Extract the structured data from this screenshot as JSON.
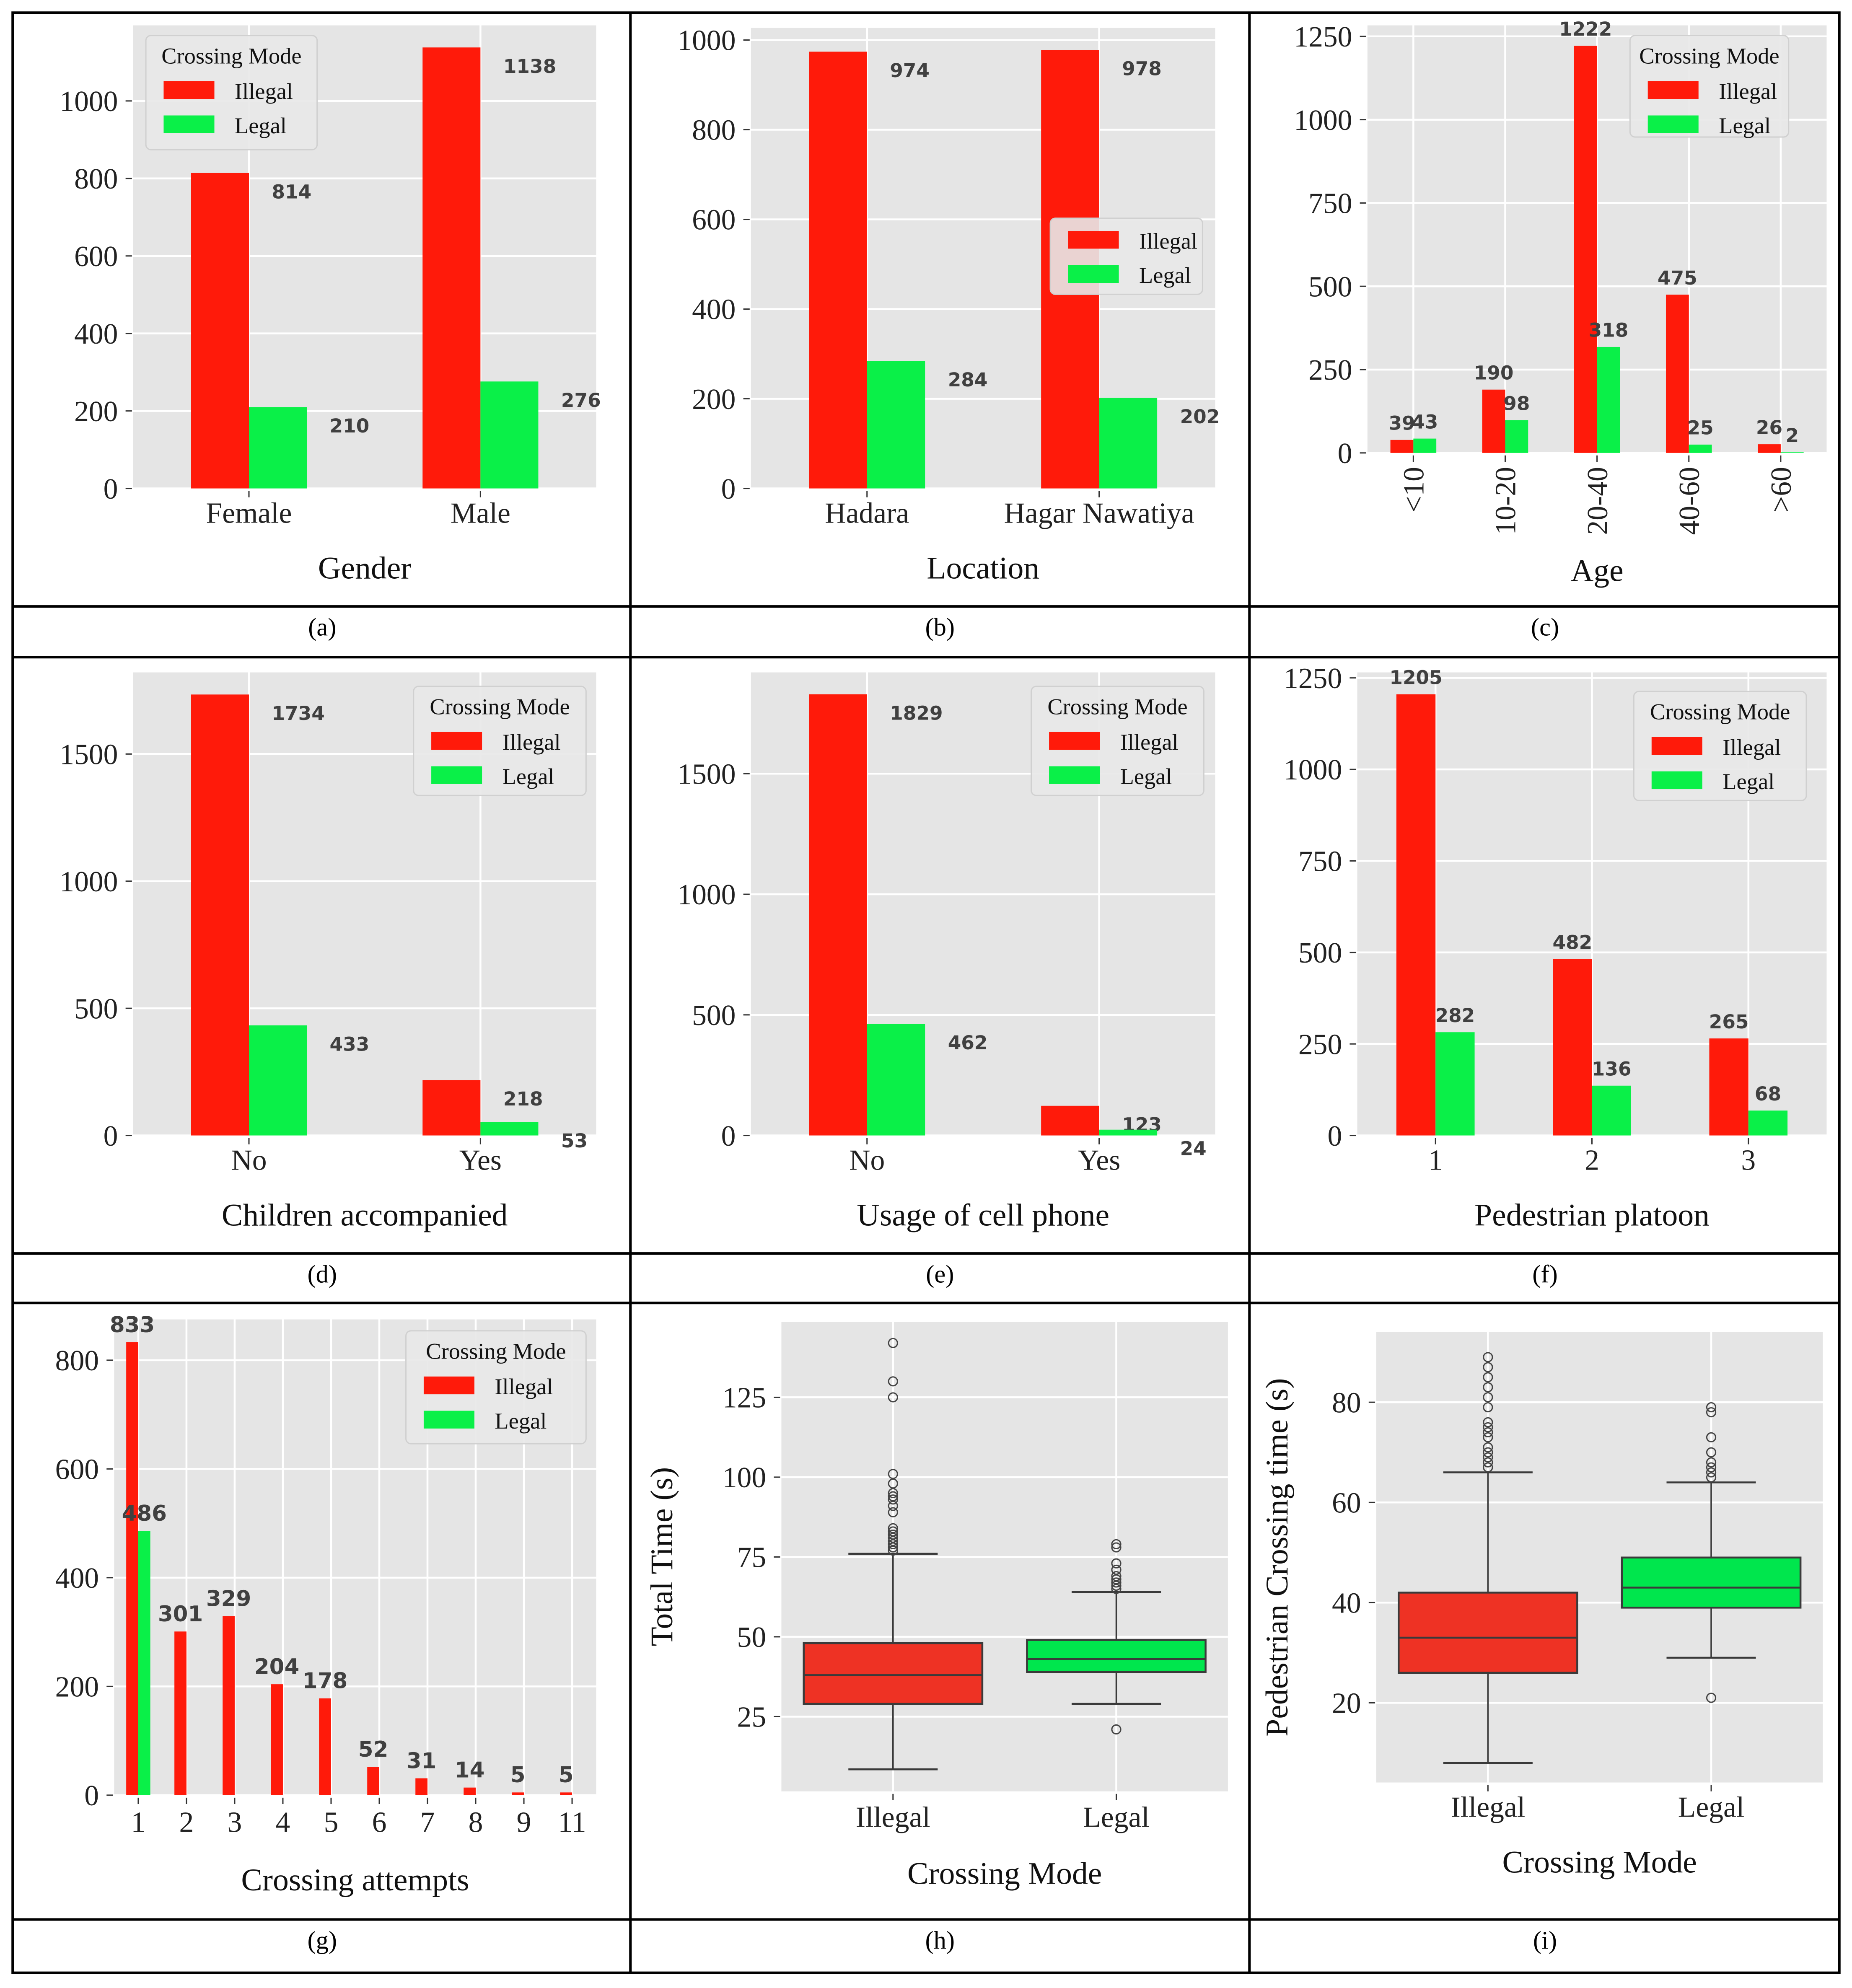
{
  "colors": {
    "illegal": "#ff1a0a",
    "legal": "#0af048",
    "box_illegal": "#ee3224",
    "box_legal": "#00e64d",
    "panel_bg": "#e5e5e5"
  },
  "captions": [
    "(a)",
    "(b)",
    "(c)",
    "(d)",
    "(e)",
    "(f)",
    "(g)",
    "(h)",
    "(i)"
  ],
  "chart_data": [
    {
      "type": "bar",
      "xlabel": "Gender",
      "ylabel": "",
      "categories": [
        "Female",
        "Male"
      ],
      "series": [
        {
          "name": "Illegal",
          "values": [
            814,
            1138
          ]
        },
        {
          "name": "Legal",
          "values": [
            210,
            276
          ]
        }
      ],
      "ylim": [
        0,
        1195
      ],
      "yticks": [
        "0",
        "200",
        "400",
        "600",
        "800",
        "1000"
      ],
      "legend_title": "Crossing Mode",
      "legend": "top-left",
      "grid": true
    },
    {
      "type": "bar",
      "xlabel": "Location",
      "ylabel": "",
      "categories": [
        "Hadara",
        "Hagar Nawatiya"
      ],
      "series": [
        {
          "name": "Illegal",
          "values": [
            974,
            978
          ]
        },
        {
          "name": "Legal",
          "values": [
            284,
            202
          ]
        }
      ],
      "ylim": [
        0,
        1027
      ],
      "yticks": [
        "0",
        "200",
        "400",
        "600",
        "800",
        "1000"
      ],
      "legend_title": "",
      "legend": "center-right",
      "grid": true
    },
    {
      "type": "bar",
      "xlabel": "Age",
      "ylabel": "",
      "categories": [
        "<10",
        "10-20",
        "20-40",
        "40-60",
        ">60"
      ],
      "series": [
        {
          "name": "Illegal",
          "values": [
            39,
            190,
            1222,
            475,
            26
          ]
        },
        {
          "name": "Legal",
          "values": [
            43,
            98,
            318,
            25,
            2
          ]
        }
      ],
      "ylim": [
        0,
        1283
      ],
      "yticks": [
        "0",
        "250",
        "500",
        "750",
        "1000",
        "1250"
      ],
      "legend_title": "Crossing Mode",
      "legend": "top-right",
      "grid": true
    },
    {
      "type": "bar",
      "xlabel": "Children accompanied",
      "ylabel": "",
      "categories": [
        "No",
        "Yes"
      ],
      "series": [
        {
          "name": "Illegal",
          "values": [
            1734,
            218
          ]
        },
        {
          "name": "Legal",
          "values": [
            433,
            53
          ]
        }
      ],
      "ylim": [
        0,
        1821
      ],
      "yticks": [
        "0",
        "500",
        "1000",
        "1500"
      ],
      "legend_title": "Crossing Mode",
      "legend": "top-right",
      "grid": true
    },
    {
      "type": "bar",
      "xlabel": "Usage of cell phone",
      "ylabel": "",
      "categories": [
        "No",
        "Yes"
      ],
      "series": [
        {
          "name": "Illegal",
          "values": [
            1829,
            123
          ]
        },
        {
          "name": "Legal",
          "values": [
            462,
            24
          ]
        }
      ],
      "ylim": [
        0,
        1920
      ],
      "yticks": [
        "0",
        "500",
        "1000",
        "1500"
      ],
      "legend_title": "Crossing Mode",
      "legend": "top-right",
      "grid": true
    },
    {
      "type": "bar",
      "xlabel": "Pedestrian platoon",
      "ylabel": "",
      "categories": [
        "1",
        "2",
        "3"
      ],
      "series": [
        {
          "name": "Illegal",
          "values": [
            1205,
            482,
            265
          ]
        },
        {
          "name": "Legal",
          "values": [
            282,
            136,
            68
          ]
        }
      ],
      "ylim": [
        0,
        1265
      ],
      "yticks": [
        "0",
        "250",
        "500",
        "750",
        "1000",
        "1250"
      ],
      "legend_title": "Crossing Mode",
      "legend": "top-right",
      "grid": true
    },
    {
      "type": "bar",
      "xlabel": "Crossing attempts",
      "ylabel": "",
      "categories": [
        "1",
        "2",
        "3",
        "4",
        "5",
        "6",
        "7",
        "8",
        "9",
        "11"
      ],
      "series": [
        {
          "name": "Illegal",
          "values": [
            833,
            301,
            329,
            204,
            178,
            52,
            31,
            14,
            5,
            5
          ]
        },
        {
          "name": "Legal",
          "values": [
            486,
            null,
            null,
            null,
            null,
            null,
            null,
            null,
            null,
            null
          ]
        }
      ],
      "ylim": [
        0,
        875
      ],
      "yticks": [
        "0",
        "200",
        "400",
        "600",
        "800"
      ],
      "legend_title": "Crossing Mode",
      "legend": "top-right",
      "grid": true
    },
    {
      "type": "box",
      "xlabel": "Crossing Mode",
      "ylabel": "Total Time (s)",
      "categories": [
        "Illegal",
        "Legal"
      ],
      "ylim": [
        1.6,
        148.6
      ],
      "yticks": [
        "25",
        "50",
        "75",
        "100",
        "125"
      ],
      "boxes": [
        {
          "whislo": 8.5,
          "q1": 29,
          "median": 38,
          "q3": 48,
          "whishi": 76,
          "outliers": [
            77,
            78,
            79,
            80,
            81,
            82,
            83,
            84,
            89,
            91,
            93,
            94,
            95,
            98,
            101,
            125,
            130,
            142
          ]
        },
        {
          "whislo": 29,
          "q1": 39,
          "median": 43,
          "q3": 49,
          "whishi": 64,
          "outliers": [
            21,
            65,
            66,
            67,
            68,
            69,
            71,
            73,
            78,
            79
          ]
        }
      ],
      "grid": true
    },
    {
      "type": "box",
      "xlabel": "Crossing Mode",
      "ylabel": "Pedestrian Crossing time (s)",
      "categories": [
        "Illegal",
        "Legal"
      ],
      "ylim": [
        4.1,
        94
      ],
      "yticks": [
        "20",
        "40",
        "60",
        "80"
      ],
      "boxes": [
        {
          "whislo": 8,
          "q1": 26,
          "median": 33,
          "q3": 42,
          "whishi": 66,
          "outliers": [
            67,
            68,
            69,
            70,
            71,
            73,
            74,
            75,
            76,
            79,
            81,
            83,
            85,
            87,
            89
          ]
        },
        {
          "whislo": 29,
          "q1": 39,
          "median": 43,
          "q3": 49,
          "whishi": 64,
          "outliers": [
            21,
            65,
            66,
            67,
            68,
            70,
            73,
            78,
            79
          ]
        }
      ],
      "grid": true
    }
  ]
}
